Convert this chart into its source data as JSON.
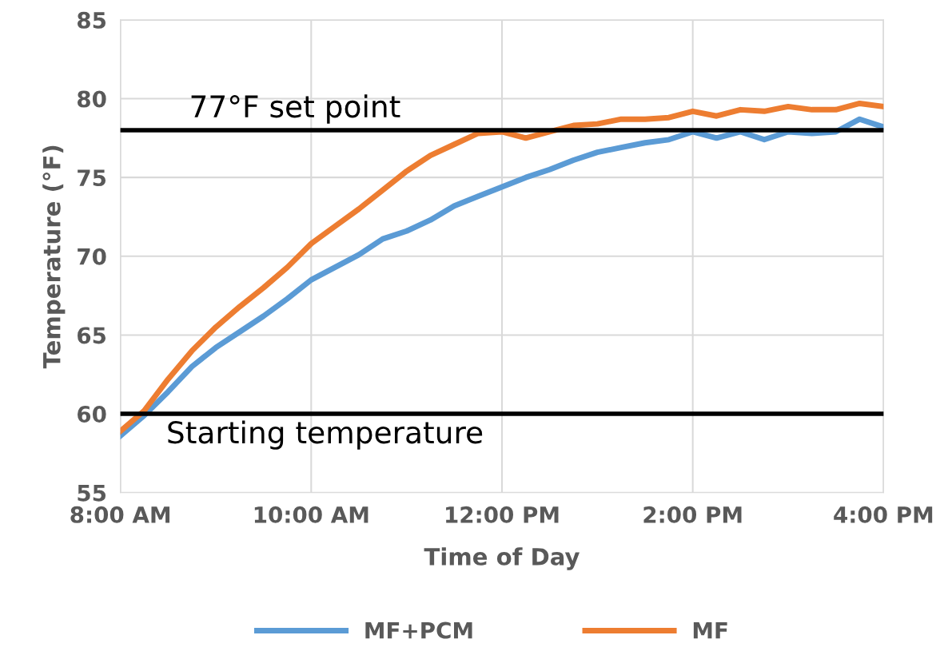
{
  "chart_data": {
    "type": "line",
    "xlabel": "Time of Day",
    "ylabel": "Temperature (°F)",
    "x": [
      8.0,
      8.25,
      8.5,
      8.75,
      9.0,
      9.25,
      9.5,
      9.75,
      10.0,
      10.25,
      10.5,
      10.75,
      11.0,
      11.25,
      11.5,
      11.75,
      12.0,
      12.25,
      12.5,
      12.75,
      13.0,
      13.25,
      13.5,
      13.75,
      14.0,
      14.25,
      14.5,
      14.75,
      15.0,
      15.25,
      15.5,
      15.75,
      16.0
    ],
    "series": [
      {
        "name": "MF+PCM",
        "color": "#5b9bd5",
        "values": [
          58.6,
          59.9,
          61.4,
          63.0,
          64.2,
          65.2,
          66.2,
          67.3,
          68.5,
          69.3,
          70.1,
          71.1,
          71.6,
          72.3,
          73.2,
          73.8,
          74.4,
          75.0,
          75.5,
          76.1,
          76.6,
          76.9,
          77.2,
          77.4,
          77.9,
          77.5,
          77.9,
          77.4,
          77.9,
          77.8,
          77.9,
          78.7,
          78.2
        ]
      },
      {
        "name": "MF",
        "color": "#ed7d31",
        "values": [
          58.9,
          60.2,
          62.2,
          64.0,
          65.5,
          66.8,
          68.0,
          69.3,
          70.8,
          71.9,
          73.0,
          74.2,
          75.4,
          76.4,
          77.1,
          77.8,
          77.9,
          77.5,
          77.9,
          78.3,
          78.4,
          78.7,
          78.7,
          78.8,
          79.2,
          78.9,
          79.3,
          79.2,
          79.5,
          79.3,
          79.3,
          79.7,
          79.5
        ]
      }
    ],
    "xlim": [
      8,
      16
    ],
    "xticks": [
      {
        "value": 8,
        "label": "8:00 AM"
      },
      {
        "value": 10,
        "label": "10:00 AM"
      },
      {
        "value": 12,
        "label": "12:00 PM"
      },
      {
        "value": 14,
        "label": "2:00 PM"
      },
      {
        "value": 16,
        "label": "4:00 PM"
      }
    ],
    "ylim": [
      55,
      85
    ],
    "yticks": [
      55,
      60,
      65,
      70,
      75,
      80,
      85
    ],
    "ref_lines": [
      {
        "axis": "y",
        "value": 78,
        "label": "77°F set point",
        "color": "#000000"
      },
      {
        "axis": "y",
        "value": 60,
        "label": "Starting temperature",
        "color": "#000000"
      }
    ],
    "grid": true,
    "legend": "bottom",
    "line_style": "solid"
  }
}
